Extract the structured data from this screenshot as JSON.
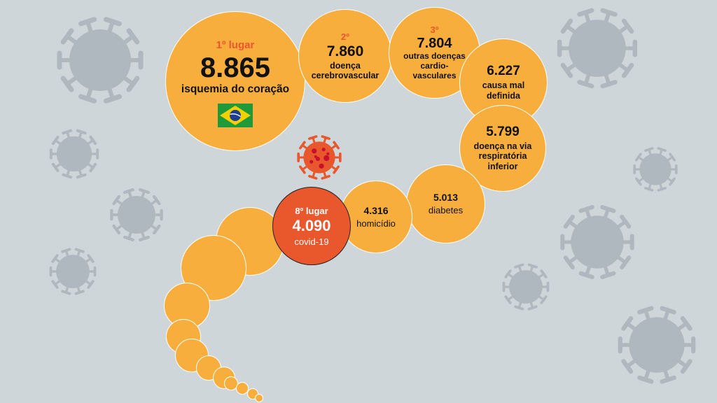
{
  "colors": {
    "background": "#cfd6da",
    "bubble": "#f7ae3c",
    "highlight": "#e9572d",
    "virus_bg": "#aeb8be",
    "virus_red": "#e9572d"
  },
  "icons": {
    "flag": "brazil-flag-icon",
    "virus": "coronavirus-icon"
  },
  "ranking": [
    {
      "rank": "1º lugar",
      "value": "8.865",
      "label": "isquemia do coração"
    },
    {
      "rank": "2º",
      "value": "7.860",
      "label_lines": [
        "doença",
        "cerebrovascular"
      ]
    },
    {
      "rank": "3º",
      "value": "7.804",
      "label_lines": [
        "outras doenças",
        "cardio-",
        "vasculares"
      ]
    },
    {
      "value": "6.227",
      "label_lines": [
        "causa mal",
        "definida"
      ]
    },
    {
      "value": "5.799",
      "label_lines": [
        "doença na via",
        "respiratória",
        "inferior"
      ]
    },
    {
      "value": "5.013",
      "label": "diabetes"
    },
    {
      "value": "4.316",
      "label": "homicídio"
    },
    {
      "rank": "8º lugar",
      "value": "4.090",
      "label": "covid-19"
    }
  ]
}
